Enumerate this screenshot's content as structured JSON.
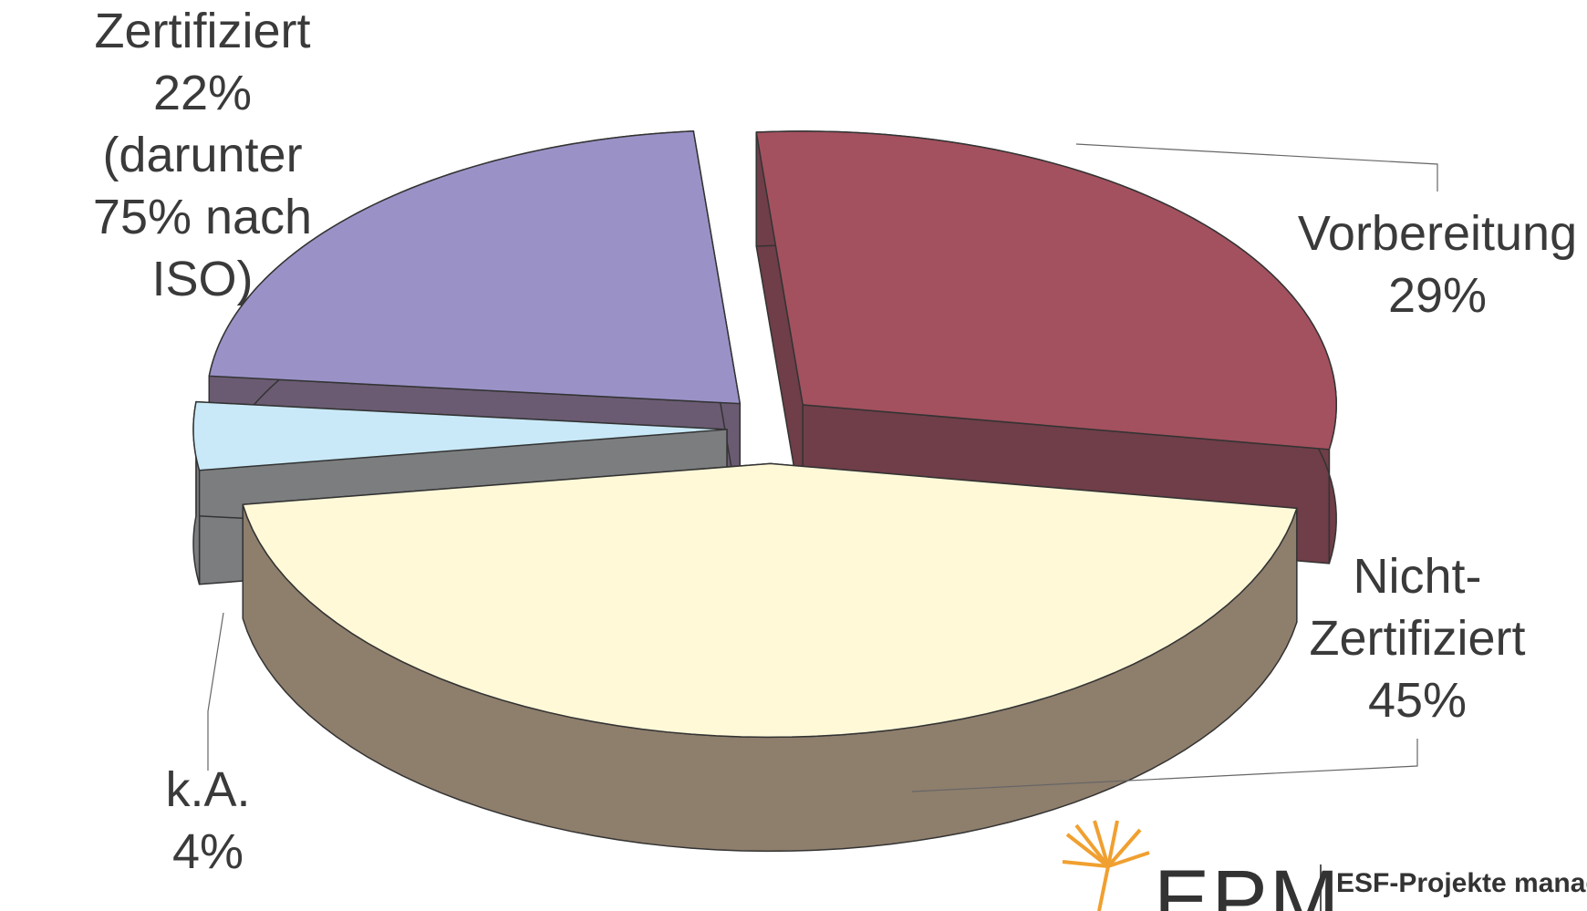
{
  "chart_data": {
    "type": "pie3d",
    "categories": [
      "Vorbereitung",
      "Nicht-Zertifiziert",
      "k.A.",
      "Zertifiziert"
    ],
    "values": [
      29,
      45,
      4,
      22
    ],
    "value_labels": [
      "29%",
      "45%",
      "4%",
      "22%"
    ],
    "colors": [
      "#a3515f",
      "#fff9d8",
      "#c9e9f8",
      "#9a92c7"
    ],
    "side_colors": [
      "#6f3e48",
      "#8e7e6c",
      "#7b7d7f",
      "#6a5b72"
    ],
    "annotation": "(darunter 75% nach ISO)"
  },
  "logo": {
    "mark": "EPM",
    "text": "ESF-Projekte manag"
  }
}
